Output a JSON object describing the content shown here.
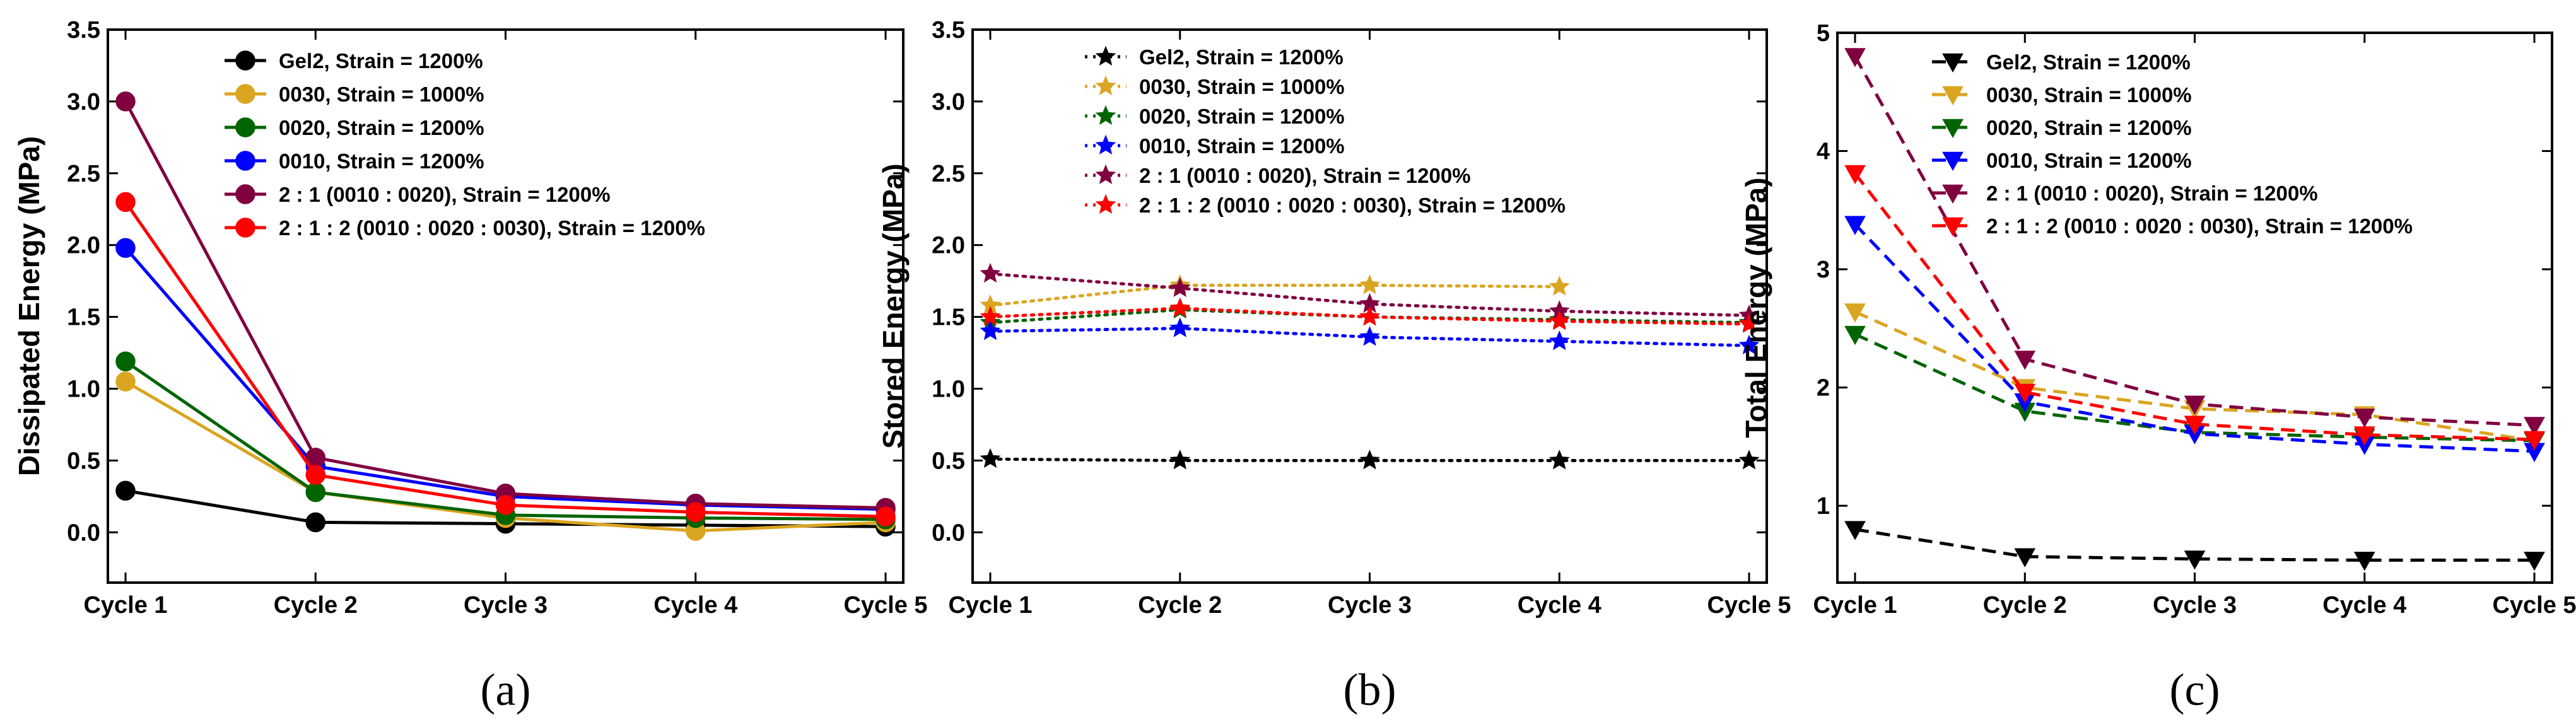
{
  "chart_data": [
    {
      "type": "line",
      "panel_label": "(a)",
      "marker": "circle",
      "line_style": "solid",
      "title": "",
      "xlabel": "",
      "ylabel": "Dissipated Energy (MPa)",
      "categories": [
        "Cycle 1",
        "Cycle 2",
        "Cycle 3",
        "Cycle 4",
        "Cycle 5"
      ],
      "ylim": [
        -0.35,
        3.5
      ],
      "yticks": [
        0.0,
        0.5,
        1.0,
        1.5,
        2.0,
        2.5,
        3.0,
        3.5
      ],
      "ytick_labels": [
        "0.0",
        "0.5",
        "1.0",
        "1.5",
        "2.0",
        "2.5",
        "3.0",
        "3.5"
      ],
      "legend_position": "top-right",
      "series": [
        {
          "name": "Gel2, Strain = 1200%",
          "color": "#000000",
          "values": [
            0.29,
            0.07,
            0.06,
            0.05,
            0.04
          ]
        },
        {
          "name": "0030, Strain = 1000%",
          "color": "#DAA520",
          "values": [
            1.05,
            0.28,
            0.1,
            0.01,
            0.07
          ]
        },
        {
          "name": "0020, Strain = 1200%",
          "color": "#006400",
          "values": [
            1.19,
            0.28,
            0.12,
            0.1,
            0.09
          ]
        },
        {
          "name": "0010, Strain = 1200%",
          "color": "#0000FF",
          "values": [
            1.98,
            0.46,
            0.25,
            0.19,
            0.16
          ]
        },
        {
          "name": "2 : 1 (0010 : 0020), Strain = 1200%",
          "color": "#800040",
          "values": [
            3.0,
            0.52,
            0.27,
            0.2,
            0.17
          ]
        },
        {
          "name": "2 : 1 : 2 (0010 : 0020 : 0030), Strain = 1200%",
          "color": "#FF0000",
          "values": [
            2.3,
            0.4,
            0.19,
            0.14,
            0.11
          ]
        }
      ]
    },
    {
      "type": "line",
      "panel_label": "(b)",
      "marker": "star",
      "line_style": "dotted",
      "title": "",
      "xlabel": "",
      "ylabel": "Stored Energy (MPa)",
      "categories": [
        "Cycle 1",
        "Cycle 2",
        "Cycle 3",
        "Cycle 4",
        "Cycle 5"
      ],
      "ylim": [
        -0.35,
        3.5
      ],
      "yticks": [
        0.0,
        0.5,
        1.0,
        1.5,
        2.0,
        2.5,
        3.0,
        3.5
      ],
      "ytick_labels": [
        "0.0",
        "0.5",
        "1.0",
        "1.5",
        "2.0",
        "2.5",
        "3.0",
        "3.5"
      ],
      "legend_position": "top-center",
      "series": [
        {
          "name": "Gel2, Strain = 1200%",
          "color": "#000000",
          "values": [
            0.51,
            0.5,
            0.5,
            0.5,
            0.5
          ]
        },
        {
          "name": "0030, Strain = 1000%",
          "color": "#DAA520",
          "values": [
            1.58,
            1.72,
            1.72,
            1.71,
            null
          ]
        },
        {
          "name": "0020, Strain = 1200%",
          "color": "#006400",
          "values": [
            1.46,
            1.55,
            1.5,
            1.48,
            1.46
          ]
        },
        {
          "name": "0010, Strain = 1200%",
          "color": "#0000FF",
          "values": [
            1.4,
            1.42,
            1.36,
            1.33,
            1.3
          ]
        },
        {
          "name": "2 : 1 (0010 : 0020), Strain = 1200%",
          "color": "#800040",
          "values": [
            1.8,
            1.7,
            1.59,
            1.54,
            1.51
          ]
        },
        {
          "name": "2 : 1 : 2 (0010 : 0020 : 0030), Strain = 1200%",
          "color": "#FF0000",
          "values": [
            1.5,
            1.56,
            1.5,
            1.47,
            1.45
          ]
        }
      ]
    },
    {
      "type": "line",
      "panel_label": "(c)",
      "marker": "triangle-down",
      "line_style": "dashed",
      "title": "",
      "xlabel": "",
      "ylabel": "Total Energy (MPa)",
      "categories": [
        "Cycle 1",
        "Cycle 2",
        "Cycle 3",
        "Cycle 4",
        "Cycle 5"
      ],
      "ylim": [
        0.35,
        5.0
      ],
      "yticks": [
        1,
        2,
        3,
        4,
        5
      ],
      "ytick_labels": [
        "1",
        "2",
        "3",
        "4",
        "5"
      ],
      "legend_position": "top-right",
      "series": [
        {
          "name": "Gel2, Strain = 1200%",
          "color": "#000000",
          "values": [
            0.8,
            0.57,
            0.55,
            0.54,
            0.54
          ]
        },
        {
          "name": "0030, Strain = 1000%",
          "color": "#DAA520",
          "values": [
            2.64,
            2.0,
            1.82,
            1.77,
            1.55
          ]
        },
        {
          "name": "0020, Strain = 1200%",
          "color": "#006400",
          "values": [
            2.45,
            1.8,
            1.62,
            1.58,
            1.55
          ]
        },
        {
          "name": "0010, Strain = 1200%",
          "color": "#0000FF",
          "values": [
            3.38,
            1.88,
            1.61,
            1.52,
            1.46
          ]
        },
        {
          "name": "2 : 1 (0010 : 0020), Strain = 1200%",
          "color": "#800040",
          "values": [
            4.8,
            2.24,
            1.86,
            1.75,
            1.68
          ]
        },
        {
          "name": "2 : 1 : 2 (0010 : 0020 : 0030), Strain = 1200%",
          "color": "#FF0000",
          "values": [
            3.81,
            1.96,
            1.69,
            1.6,
            1.56
          ]
        }
      ]
    }
  ]
}
